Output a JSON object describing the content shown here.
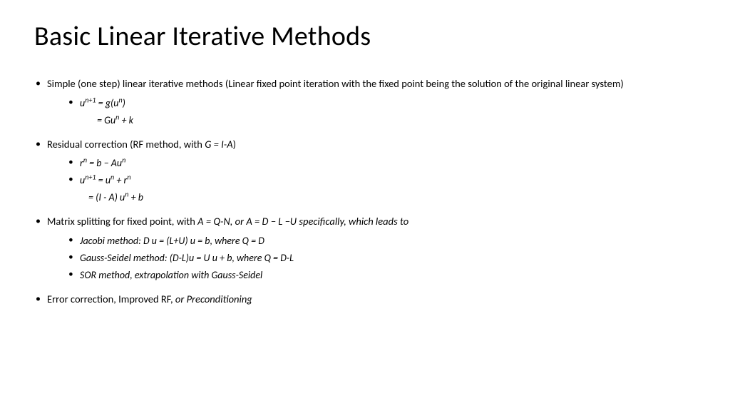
{
  "title": "Basic Linear Iterative Methods",
  "b1": {
    "text": "Simple (one step) linear iterative methods (Linear fixed point iteration with the fixed point being the solution of the original linear system)",
    "sub1_html": "u<sup>n+1</sup> = g(u<sup>n</sup>)",
    "cont_html": "= Gu<sup>n</sup> + k"
  },
  "b2": {
    "text_html": "Residual correction (RF method, with <span class=\"it\">G = I-A</span>)",
    "sub1_html": "r<sup>n</sup> = b − Au<sup>n</sup>",
    "sub2_html": "u<sup>n+1</sup> = u<sup>n</sup> + r<sup>n</sup>",
    "cont_html": "= (I - A) u<sup>n</sup> + b"
  },
  "b3": {
    "text_html": "Matrix splitting for fixed point, with <span class=\"it\">A = Q-N, or A = D − L −U specifically, which leads to</span>",
    "sub1": "Jacobi method: D u  = (L+U) u = b, where Q = D",
    "sub2": "Gauss-Seidel method: (D-L)u = U u + b, where Q = D-L",
    "sub3": "SOR method, extrapolation with Gauss-Seidel"
  },
  "b4": {
    "text_html": "Error correction, Improved RF, <span class=\"it\">or Preconditioning</span>"
  },
  "style": {
    "background": "#ffffff",
    "text_color": "#000000",
    "title_fontsize": 38,
    "body_fontsize": 14.5,
    "sub_fontsize": 14
  }
}
